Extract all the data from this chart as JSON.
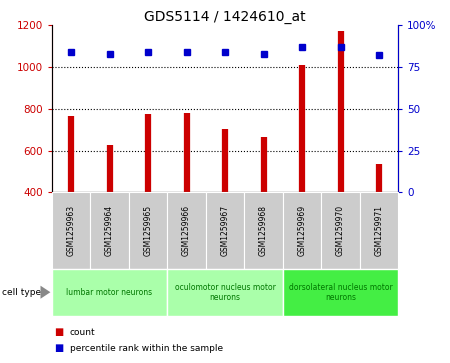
{
  "title": "GDS5114 / 1424610_at",
  "samples": [
    "GSM1259963",
    "GSM1259964",
    "GSM1259965",
    "GSM1259966",
    "GSM1259967",
    "GSM1259968",
    "GSM1259969",
    "GSM1259970",
    "GSM1259971"
  ],
  "counts": [
    765,
    628,
    775,
    780,
    703,
    666,
    1010,
    1175,
    535
  ],
  "percentile_ranks": [
    84,
    83,
    84,
    84,
    84,
    83,
    87,
    87,
    82
  ],
  "ylim_left": [
    400,
    1200
  ],
  "ylim_right": [
    0,
    100
  ],
  "yticks_left": [
    400,
    600,
    800,
    1000,
    1200
  ],
  "yticks_right": [
    0,
    25,
    50,
    75,
    100
  ],
  "ytick_right_labels": [
    "0",
    "25",
    "50",
    "75",
    "100%"
  ],
  "bar_color": "#cc0000",
  "dot_color": "#0000cc",
  "cell_type_groups": [
    {
      "label": "lumbar motor neurons",
      "start": 0,
      "end": 3,
      "color": "#aaffaa"
    },
    {
      "label": "oculomotor nucleus motor\nneurons",
      "start": 3,
      "end": 6,
      "color": "#aaffaa"
    },
    {
      "label": "dorsolateral nucleus motor\nneurons",
      "start": 6,
      "end": 9,
      "color": "#44ee44"
    }
  ],
  "cell_type_label": "cell type",
  "legend_count_label": "count",
  "legend_pct_label": "percentile rank within the sample",
  "grid_color": "#000000",
  "background_color": "#ffffff",
  "plot_bg_color": "#ffffff",
  "sample_box_color": "#cccccc",
  "sample_box_edge": "#ffffff",
  "grid_dotted_values": [
    600,
    800,
    1000
  ],
  "bar_linewidth": 4.5
}
